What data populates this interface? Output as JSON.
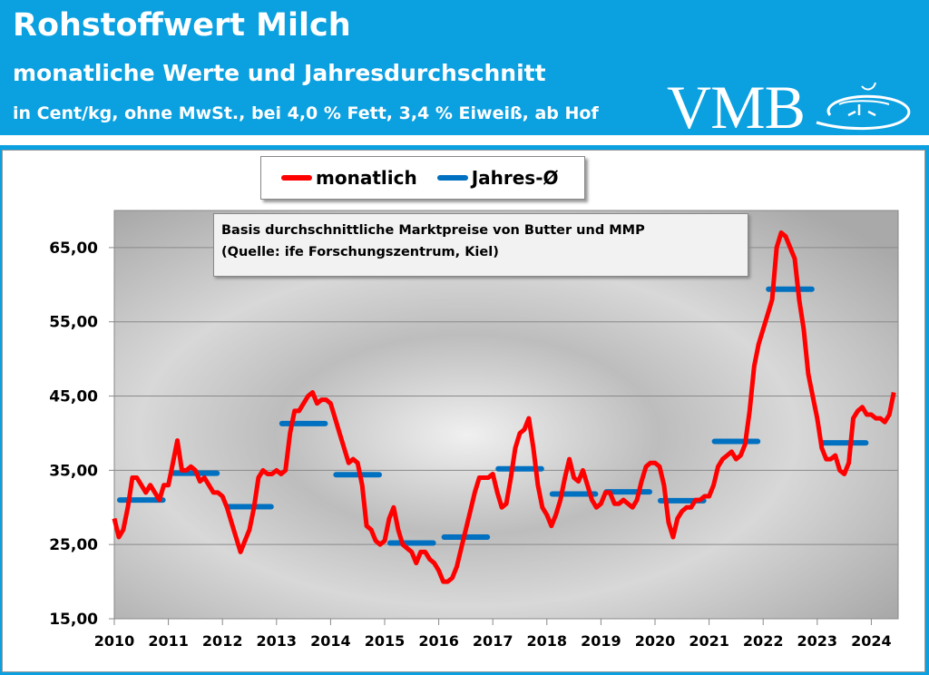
{
  "header": {
    "title": "Rohstoffwert Milch",
    "subtitle": "monatliche Werte und Jahresdurchschnitt",
    "units_line": "in Cent/kg, ohne MwSt., bei 4,0 % Fett, 3,4 % Eiweiß, ab Hof",
    "logo_text": "VMB",
    "brand_color": "#0ba0e0"
  },
  "note": {
    "line1": "Basis durchschnittliche Marktpreise von Butter und MMP",
    "line2": "(Quelle: ife Forschungszentrum, Kiel)"
  },
  "chart_data": {
    "type": "line",
    "title": "",
    "xlabel": "",
    "ylabel": "",
    "ylim": [
      15,
      70
    ],
    "yticks": [
      "15,00",
      "25,00",
      "35,00",
      "45,00",
      "55,00",
      "65,00"
    ],
    "ytick_values": [
      15,
      25,
      35,
      45,
      55,
      65
    ],
    "xticks": [
      "2010",
      "2011",
      "2012",
      "2013",
      "2014",
      "2015",
      "2016",
      "2017",
      "2018",
      "2019",
      "2020",
      "2021",
      "2022",
      "2023",
      "2024"
    ],
    "grid": true,
    "legend": "top-center",
    "series": [
      {
        "name": "monatlich",
        "color": "#ff0000",
        "start": "2010-01",
        "frequency": "monthly",
        "values": [
          28.5,
          26,
          27,
          30,
          34,
          34,
          33,
          32,
          33,
          32,
          31,
          33,
          33,
          36,
          39,
          35,
          35,
          35.5,
          35,
          33.5,
          34,
          33,
          32,
          32,
          31.5,
          30,
          28,
          26,
          24,
          25.5,
          27,
          30,
          34,
          35,
          34.5,
          34.5,
          35,
          34.5,
          35,
          40,
          43,
          43,
          44,
          45,
          45.5,
          44,
          44.5,
          44.5,
          44,
          42,
          40,
          38,
          36,
          36.5,
          36,
          33,
          27.5,
          27,
          25.5,
          25,
          25.5,
          28.5,
          30,
          27,
          25,
          24.5,
          24,
          22.5,
          24,
          24,
          23,
          22.5,
          21.5,
          20,
          20,
          20.5,
          22,
          24.5,
          27,
          29.5,
          32,
          34,
          34,
          34,
          34.5,
          32,
          30,
          30.5,
          34,
          38,
          40,
          40.5,
          42,
          38,
          33,
          30,
          29,
          27.5,
          29,
          31,
          34,
          36.5,
          34,
          33.5,
          35,
          33,
          31,
          30,
          30.5,
          32,
          32,
          30.5,
          30.5,
          31,
          30.5,
          30,
          31,
          33.5,
          35.5,
          36,
          36,
          35.5,
          33,
          28,
          26,
          28.5,
          29.5,
          30,
          30,
          31,
          31,
          31.5,
          31.5,
          33,
          35.5,
          36.5,
          37,
          37.5,
          36.5,
          37,
          38.5,
          43,
          49,
          52,
          54,
          56,
          58,
          65,
          67,
          66.5,
          65,
          63.5,
          58,
          54,
          48,
          45,
          42,
          38,
          36.5,
          36.5,
          37,
          35,
          34.5,
          36,
          42,
          43,
          43.5,
          42.5,
          42.5,
          42,
          42,
          41.5,
          42.5,
          45.5
        ]
      },
      {
        "name": "Jahres-Ø",
        "color": "#0070c0",
        "years": [
          "2010",
          "2011",
          "2012",
          "2013",
          "2014",
          "2015",
          "2016",
          "2017",
          "2018",
          "2019",
          "2020",
          "2021",
          "2022",
          "2023"
        ],
        "values": [
          31.0,
          34.6,
          30.1,
          41.3,
          34.4,
          25.2,
          26.0,
          35.2,
          31.8,
          32.1,
          30.9,
          38.9,
          59.4,
          38.7
        ]
      }
    ]
  }
}
